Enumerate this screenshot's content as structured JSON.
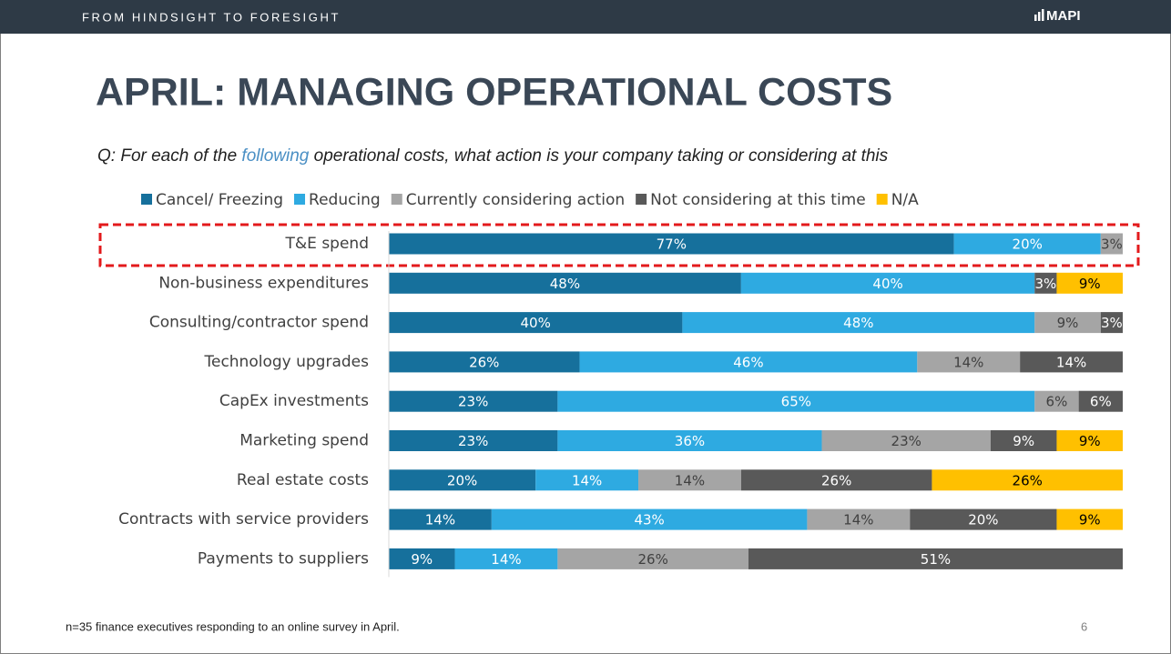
{
  "header": {
    "tagline": "FROM HINDSIGHT TO FORESIGHT",
    "logo": "MAPI"
  },
  "page_number": "6",
  "footnote": "n=35 finance executives responding to an online survey in April.",
  "chart_data": {
    "type": "stacked-bar-horizontal",
    "title": "APRIL: MANAGING OPERATIONAL COSTS",
    "subtitle_parts": [
      "Q: For each of the ",
      "following",
      " operational costs, what action is your company taking or considering at this"
    ],
    "highlight_color": "#4a8fc4",
    "categories": [
      "T&E spend",
      "Non-business expenditures",
      "Consulting/contractor spend",
      "Technology upgrades",
      "CapEx investments",
      "Marketing spend",
      "Real estate costs",
      "Contracts with service providers",
      "Payments to suppliers"
    ],
    "xlim": [
      0,
      100
    ],
    "highlighted_category": 0,
    "series": [
      {
        "name": "Cancel/ Freezing",
        "color": "#16709c",
        "label_color": "#ffffff",
        "values": [
          77,
          48,
          40,
          26,
          23,
          23,
          20,
          14,
          9
        ],
        "value_labels": [
          "77%",
          "48%",
          "40%",
          "26%",
          "23%",
          "23%",
          "20%",
          "14%",
          "9%"
        ]
      },
      {
        "name": "Reducing",
        "color": "#2eaae1",
        "label_color": "#ffffff",
        "values": [
          20,
          40,
          48,
          46,
          65,
          36,
          14,
          43,
          14
        ],
        "value_labels": [
          "20%",
          "40%",
          "48%",
          "46%",
          "65%",
          "36%",
          "14%",
          "43%",
          "14%"
        ]
      },
      {
        "name": "Currently considering action",
        "color": "#a5a5a5",
        "label_color": "#404040",
        "values": [
          3,
          null,
          9,
          14,
          6,
          23,
          14,
          14,
          26
        ],
        "value_labels": [
          "3%",
          null,
          "9%",
          "14%",
          "6%",
          "23%",
          "14%",
          "14%",
          "26%"
        ]
      },
      {
        "name": "Not considering at this time",
        "color": "#595959",
        "label_color": "#ffffff",
        "values": [
          null,
          3,
          3,
          14,
          6,
          9,
          26,
          20,
          51
        ],
        "value_labels": [
          null,
          "3%",
          "3%",
          "14%",
          "6%",
          "9%",
          "26%",
          "20%",
          "51%"
        ]
      },
      {
        "name": "N/A",
        "color": "#ffc000",
        "label_color": "#000000",
        "values": [
          null,
          9,
          null,
          null,
          null,
          9,
          26,
          9,
          null
        ],
        "value_labels": [
          null,
          "9%",
          null,
          null,
          null,
          "9%",
          "26%",
          "9%",
          null
        ]
      }
    ]
  }
}
